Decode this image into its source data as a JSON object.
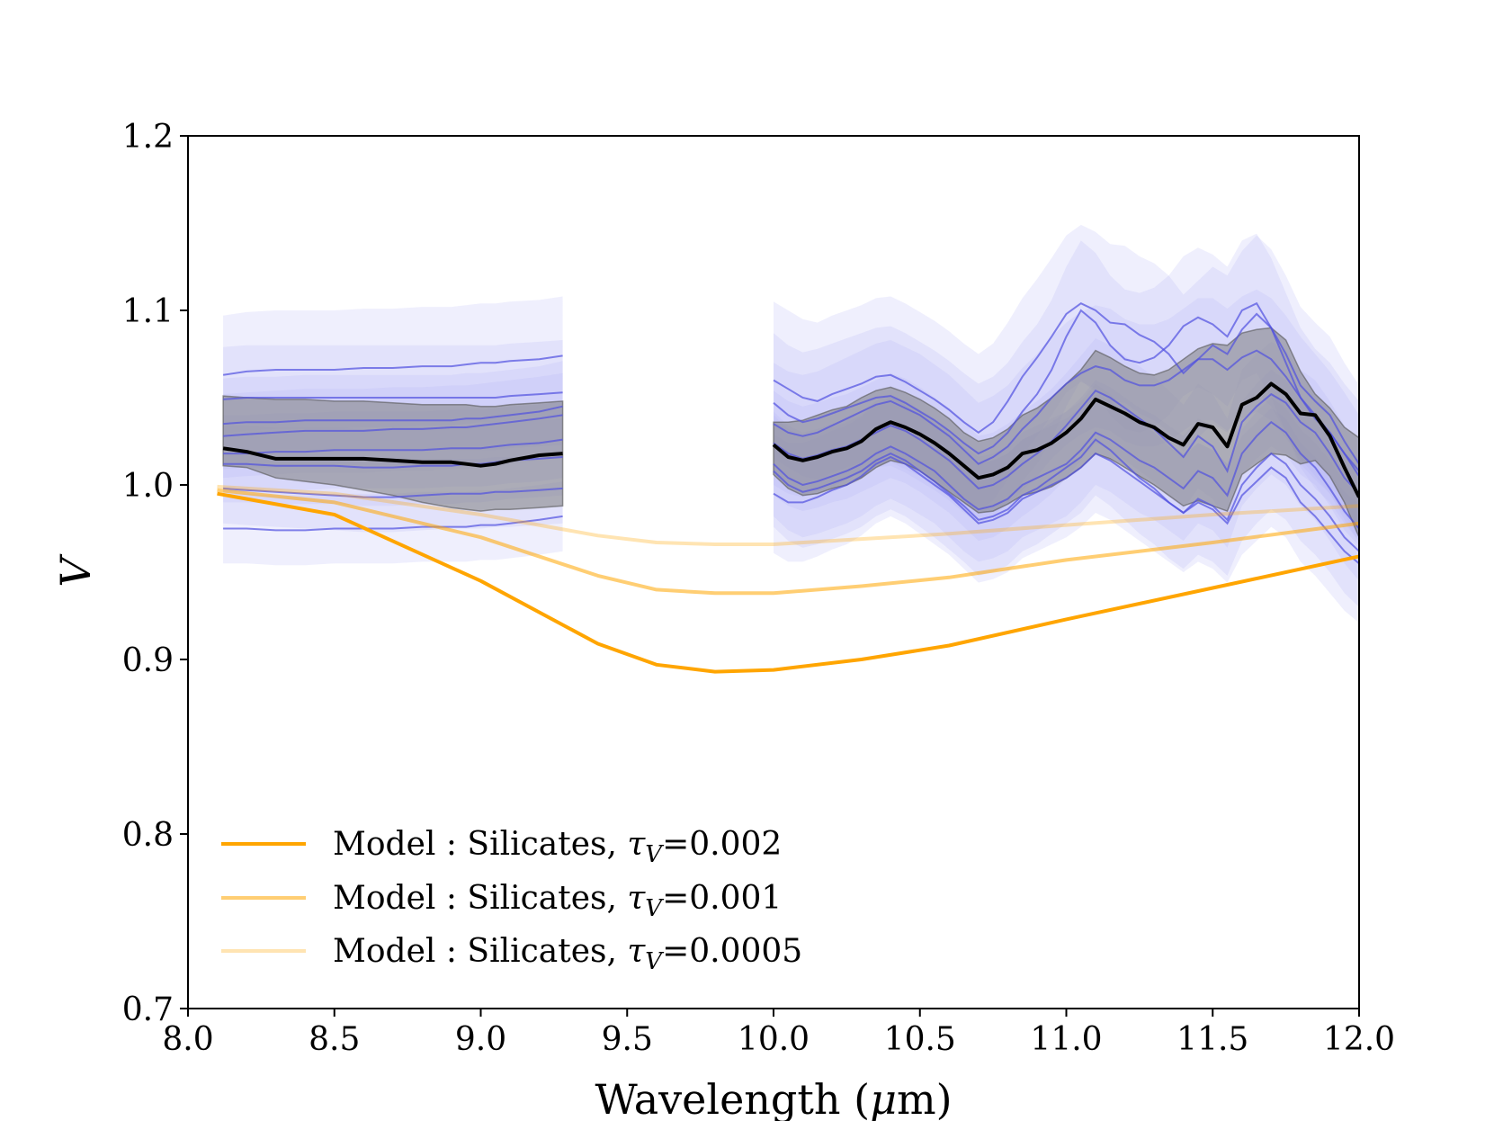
{
  "chart_data": {
    "type": "line",
    "xlabel_text": "Wavelength (",
    "xlabel_symbol": "μ",
    "xlabel_unit": "m)",
    "ylabel": "V",
    "xlim": [
      8.0,
      12.0
    ],
    "ylim": [
      0.7,
      1.2
    ],
    "xticks": [
      8.0,
      8.5,
      9.0,
      9.5,
      10.0,
      10.5,
      11.0,
      11.5,
      12.0
    ],
    "xtick_labels": [
      "8.0",
      "8.5",
      "9.0",
      "9.5",
      "10.0",
      "10.5",
      "11.0",
      "11.5",
      "12.0"
    ],
    "yticks": [
      0.7,
      0.8,
      0.9,
      1.0,
      1.1,
      1.2
    ],
    "ytick_labels": [
      "0.7",
      "0.8",
      "0.9",
      "1.0",
      "1.1",
      "1.2"
    ],
    "legend_position": "lower-left",
    "colors": {
      "model_strong": "#ffa500",
      "model_medium": "#ffc966",
      "model_light": "#ffe2b0",
      "observations": "#5050e0",
      "observation_band": "#b8b8f8",
      "mean": "#000000",
      "mean_band": "#808080"
    },
    "models": [
      {
        "name_prefix": "Model : Silicates, ",
        "tau_symbol": "τ",
        "tau_subscript": "V",
        "tau_value": "=0.002",
        "color": "#ffa500",
        "opacity": 1.0,
        "x": [
          8.1,
          8.5,
          9.0,
          9.4,
          9.6,
          9.8,
          10.0,
          10.3,
          10.6,
          11.0,
          11.5,
          12.0
        ],
        "y": [
          0.995,
          0.983,
          0.945,
          0.909,
          0.897,
          0.893,
          0.894,
          0.9,
          0.908,
          0.923,
          0.941,
          0.959
        ]
      },
      {
        "name_prefix": "Model : Silicates, ",
        "tau_symbol": "τ",
        "tau_subscript": "V",
        "tau_value": "=0.001",
        "color": "#ffa500",
        "opacity": 0.55,
        "x": [
          8.1,
          8.5,
          9.0,
          9.4,
          9.6,
          9.8,
          10.0,
          10.3,
          10.6,
          11.0,
          11.5,
          12.0
        ],
        "y": [
          0.997,
          0.99,
          0.97,
          0.948,
          0.94,
          0.938,
          0.938,
          0.942,
          0.947,
          0.957,
          0.967,
          0.978
        ]
      },
      {
        "name_prefix": "Model : Silicates, ",
        "tau_symbol": "τ",
        "tau_subscript": "V",
        "tau_value": "=0.0005",
        "color": "#ffa500",
        "opacity": 0.3,
        "x": [
          8.1,
          8.5,
          9.0,
          9.4,
          9.6,
          9.8,
          10.0,
          10.3,
          10.6,
          11.0,
          11.5,
          12.0
        ],
        "y": [
          0.999,
          0.995,
          0.983,
          0.971,
          0.967,
          0.966,
          0.966,
          0.969,
          0.972,
          0.977,
          0.983,
          0.988
        ]
      }
    ],
    "observation_segments": [
      {
        "x_start": 8.12,
        "x_end": 9.28,
        "mean_x": [
          8.12,
          8.2,
          8.3,
          8.4,
          8.5,
          8.6,
          8.7,
          8.8,
          8.9,
          8.95,
          9.0,
          9.05,
          9.1,
          9.2,
          9.28
        ],
        "mean_y": [
          1.021,
          1.019,
          1.015,
          1.015,
          1.015,
          1.015,
          1.014,
          1.013,
          1.013,
          1.012,
          1.011,
          1.012,
          1.014,
          1.017,
          1.018
        ],
        "mean_band_upper": [
          1.051,
          1.05,
          1.049,
          1.049,
          1.048,
          1.048,
          1.047,
          1.046,
          1.046,
          1.046,
          1.045,
          1.045,
          1.046,
          1.047,
          1.048
        ],
        "mean_band_lower": [
          1.011,
          1.01,
          1.004,
          1.002,
          1.0,
          0.997,
          0.994,
          0.99,
          0.987,
          0.986,
          0.985,
          0.986,
          0.986,
          0.987,
          0.988
        ],
        "lines": [
          {
            "y": [
              1.063,
              1.065,
              1.066,
              1.066,
              1.066,
              1.067,
              1.067,
              1.068,
              1.068,
              1.069,
              1.07,
              1.07,
              1.071,
              1.072,
              1.074
            ],
            "spread": 0.034
          },
          {
            "y": [
              1.049,
              1.05,
              1.05,
              1.05,
              1.05,
              1.05,
              1.05,
              1.05,
              1.05,
              1.05,
              1.05,
              1.05,
              1.051,
              1.052,
              1.053
            ],
            "spread": 0.03
          },
          {
            "y": [
              1.035,
              1.036,
              1.036,
              1.037,
              1.037,
              1.037,
              1.037,
              1.037,
              1.037,
              1.038,
              1.038,
              1.039,
              1.04,
              1.042,
              1.045
            ],
            "spread": 0.026
          },
          {
            "y": [
              1.028,
              1.029,
              1.03,
              1.031,
              1.031,
              1.031,
              1.032,
              1.032,
              1.033,
              1.033,
              1.034,
              1.035,
              1.036,
              1.038,
              1.04
            ],
            "spread": 0.024
          },
          {
            "y": [
              1.018,
              1.018,
              1.019,
              1.019,
              1.02,
              1.02,
              1.02,
              1.02,
              1.021,
              1.021,
              1.021,
              1.022,
              1.023,
              1.024,
              1.026
            ],
            "spread": 0.022
          },
          {
            "y": [
              1.012,
              1.012,
              1.011,
              1.011,
              1.011,
              1.01,
              1.01,
              1.011,
              1.011,
              1.012,
              1.012,
              1.013,
              1.014,
              1.015,
              1.016
            ],
            "spread": 0.022
          },
          {
            "y": [
              0.998,
              0.997,
              0.996,
              0.995,
              0.994,
              0.993,
              0.993,
              0.994,
              0.995,
              0.995,
              0.995,
              0.996,
              0.996,
              0.997,
              0.998
            ],
            "spread": 0.02
          },
          {
            "y": [
              0.975,
              0.975,
              0.974,
              0.974,
              0.975,
              0.975,
              0.975,
              0.976,
              0.976,
              0.976,
              0.977,
              0.977,
              0.978,
              0.98,
              0.982
            ],
            "spread": 0.02
          }
        ]
      },
      {
        "x_start": 10.0,
        "x_end": 12.0,
        "mean_x": [
          10.0,
          10.05,
          10.1,
          10.15,
          10.2,
          10.25,
          10.3,
          10.35,
          10.4,
          10.45,
          10.5,
          10.55,
          10.6,
          10.65,
          10.7,
          10.75,
          10.8,
          10.85,
          10.9,
          10.95,
          11.0,
          11.05,
          11.1,
          11.15,
          11.2,
          11.25,
          11.3,
          11.35,
          11.4,
          11.45,
          11.5,
          11.55,
          11.6,
          11.65,
          11.7,
          11.75,
          11.8,
          11.85,
          11.9,
          11.95,
          12.0
        ],
        "mean_y": [
          1.023,
          1.016,
          1.014,
          1.016,
          1.019,
          1.021,
          1.025,
          1.032,
          1.036,
          1.033,
          1.029,
          1.024,
          1.018,
          1.011,
          1.004,
          1.006,
          1.01,
          1.018,
          1.02,
          1.024,
          1.03,
          1.038,
          1.049,
          1.045,
          1.041,
          1.036,
          1.033,
          1.027,
          1.023,
          1.035,
          1.033,
          1.022,
          1.046,
          1.05,
          1.058,
          1.052,
          1.041,
          1.04,
          1.028,
          1.01,
          0.993
        ],
        "mean_band_upper": [
          1.036,
          1.036,
          1.037,
          1.04,
          1.043,
          1.045,
          1.05,
          1.054,
          1.056,
          1.053,
          1.049,
          1.044,
          1.038,
          1.03,
          1.025,
          1.027,
          1.032,
          1.04,
          1.044,
          1.05,
          1.058,
          1.066,
          1.077,
          1.073,
          1.068,
          1.064,
          1.063,
          1.066,
          1.072,
          1.078,
          1.081,
          1.08,
          1.087,
          1.089,
          1.09,
          1.083,
          1.065,
          1.052,
          1.044,
          1.033,
          1.027
        ],
        "mean_band_lower": [
          1.006,
          0.998,
          0.994,
          0.995,
          0.998,
          1.0,
          1.004,
          1.01,
          1.014,
          1.012,
          1.008,
          1.002,
          0.996,
          0.99,
          0.984,
          0.985,
          0.989,
          0.994,
          0.996,
          0.999,
          1.004,
          1.01,
          1.018,
          1.015,
          1.01,
          1.005,
          1.0,
          0.994,
          0.988,
          0.991,
          0.988,
          0.985,
          1.006,
          1.012,
          1.018,
          1.017,
          1.012,
          1.014,
          1.005,
          0.99,
          0.97
        ],
        "lines": [
          {
            "y": [
              1.06,
              1.055,
              1.05,
              1.048,
              1.052,
              1.055,
              1.058,
              1.062,
              1.063,
              1.059,
              1.054,
              1.049,
              1.043,
              1.036,
              1.03,
              1.036,
              1.048,
              1.062,
              1.073,
              1.085,
              1.098,
              1.104,
              1.1,
              1.093,
              1.092,
              1.086,
              1.082,
              1.075,
              1.064,
              1.072,
              1.08,
              1.075,
              1.089,
              1.098,
              1.09,
              1.075,
              1.057,
              1.048,
              1.04,
              1.025,
              1.012
            ],
            "spread": 0.045
          },
          {
            "y": [
              1.047,
              1.04,
              1.036,
              1.038,
              1.041,
              1.044,
              1.047,
              1.05,
              1.051,
              1.047,
              1.042,
              1.037,
              1.031,
              1.024,
              1.018,
              1.022,
              1.03,
              1.042,
              1.052,
              1.066,
              1.085,
              1.1,
              1.093,
              1.08,
              1.072,
              1.07,
              1.073,
              1.08,
              1.091,
              1.096,
              1.092,
              1.085,
              1.1,
              1.104,
              1.09,
              1.07,
              1.05,
              1.038,
              1.03,
              1.018,
              1.008
            ],
            "spread": 0.04
          },
          {
            "y": [
              1.035,
              1.03,
              1.028,
              1.03,
              1.034,
              1.038,
              1.042,
              1.046,
              1.048,
              1.044,
              1.04,
              1.034,
              1.028,
              1.02,
              1.012,
              1.016,
              1.022,
              1.032,
              1.04,
              1.05,
              1.058,
              1.064,
              1.068,
              1.066,
              1.06,
              1.057,
              1.057,
              1.06,
              1.066,
              1.072,
              1.072,
              1.066,
              1.073,
              1.077,
              1.072,
              1.062,
              1.05,
              1.04,
              1.03,
              1.018,
              1.005
            ],
            "spread": 0.035
          },
          {
            "y": [
              1.024,
              1.018,
              1.015,
              1.017,
              1.02,
              1.022,
              1.026,
              1.03,
              1.034,
              1.031,
              1.026,
              1.02,
              1.014,
              1.006,
              0.998,
              1.0,
              1.005,
              1.012,
              1.018,
              1.025,
              1.034,
              1.044,
              1.054,
              1.05,
              1.044,
              1.038,
              1.032,
              1.024,
              1.016,
              1.028,
              1.022,
              1.008,
              1.036,
              1.045,
              1.052,
              1.047,
              1.036,
              1.03,
              1.018,
              1.004,
              0.995
            ],
            "spread": 0.03
          },
          {
            "y": [
              1.012,
              1.004,
              1.0,
              1.002,
              1.005,
              1.008,
              1.012,
              1.018,
              1.022,
              1.018,
              1.013,
              1.008,
              1.0,
              0.992,
              0.986,
              0.988,
              0.992,
              1.0,
              1.004,
              1.008,
              1.012,
              1.02,
              1.03,
              1.026,
              1.02,
              1.014,
              1.01,
              1.004,
              0.998,
              1.008,
              1.004,
              0.994,
              1.018,
              1.028,
              1.036,
              1.03,
              1.018,
              1.01,
              0.998,
              0.985,
              0.975
            ],
            "spread": 0.03
          },
          {
            "y": [
              1.008,
              1.0,
              0.996,
              0.998,
              1.001,
              1.004,
              1.008,
              1.014,
              1.018,
              1.014,
              1.008,
              1.002,
              0.995,
              0.988,
              0.98,
              0.982,
              0.986,
              0.994,
              0.998,
              1.004,
              1.01,
              1.016,
              1.026,
              1.02,
              1.012,
              1.004,
              0.998,
              0.99,
              0.984,
              0.992,
              0.988,
              0.98,
              1.0,
              1.01,
              1.018,
              1.012,
              1.0,
              0.992,
              0.982,
              0.97,
              0.962
            ],
            "spread": 0.032
          },
          {
            "y": [
              0.995,
              0.99,
              0.99,
              0.993,
              0.997,
              1.0,
              1.005,
              1.012,
              1.016,
              1.012,
              1.006,
              1.0,
              0.994,
              0.986,
              0.978,
              0.98,
              0.984,
              0.992,
              0.996,
              1.0,
              1.004,
              1.01,
              1.018,
              1.014,
              1.008,
              1.002,
              0.996,
              0.99,
              0.984,
              0.99,
              0.986,
              0.978,
              0.994,
              1.002,
              1.01,
              1.004,
              0.99,
              0.982,
              0.972,
              0.962,
              0.955
            ],
            "spread": 0.034
          }
        ]
      }
    ]
  }
}
